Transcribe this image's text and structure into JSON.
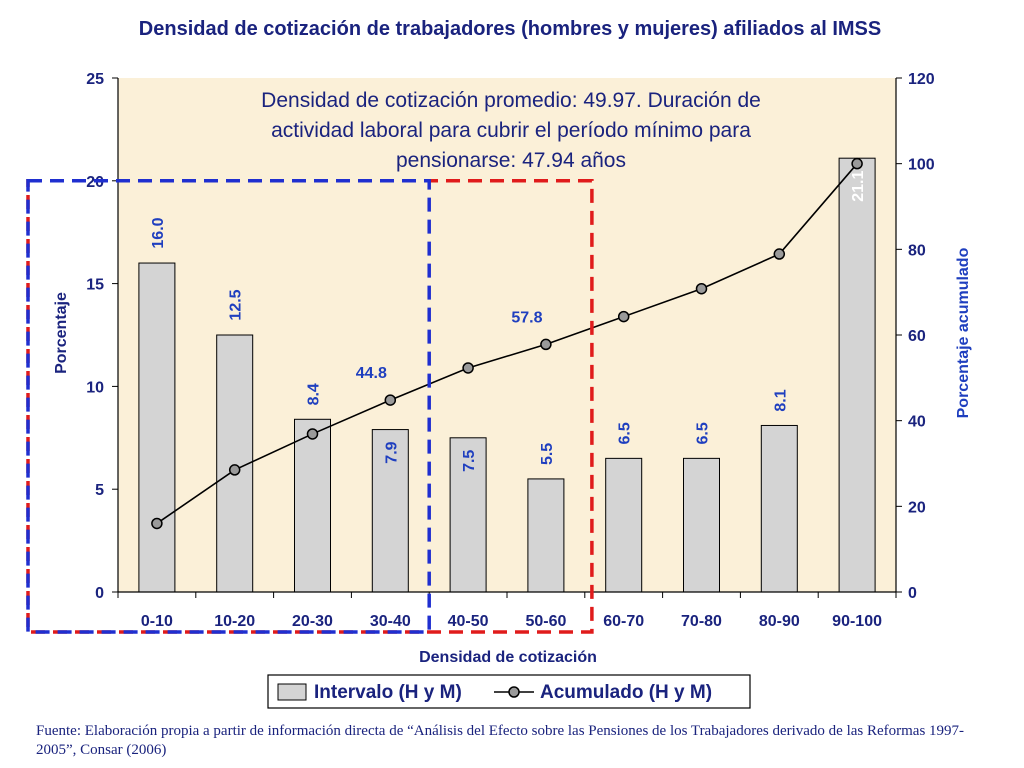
{
  "chart_data": {
    "type": "bar",
    "title": "Densidad de cotización de trabajadores (hombres y mujeres) afiliados al IMSS",
    "annotation": "Densidad de cotización promedio: 49.97. Duración de actividad laboral para cubrir el período mínimo para pensionarse: 47.94 años",
    "xlabel": "Densidad de cotización",
    "ylabel": "Porcentaje",
    "y2label": "Porcentaje acumulado",
    "categories": [
      "0-10",
      "10-20",
      "20-30",
      "30-40",
      "40-50",
      "50-60",
      "60-70",
      "70-80",
      "80-90",
      "90-100"
    ],
    "ylim": [
      0,
      25
    ],
    "y_ticks": [
      0,
      5,
      10,
      15,
      20,
      25
    ],
    "y2lim": [
      0,
      120
    ],
    "y2_ticks": [
      0,
      20,
      40,
      60,
      80,
      100,
      120
    ],
    "series": [
      {
        "name": "Intervalo (H y M)",
        "type": "bar",
        "axis": "left",
        "values": [
          16.0,
          12.5,
          8.4,
          7.9,
          7.5,
          5.5,
          6.5,
          6.5,
          8.1,
          21.1
        ],
        "labels": [
          "16.0",
          "12.5",
          "8.4",
          "7.9",
          "7.5",
          "5.5",
          "6.5",
          "6.5",
          "8.1",
          "21.1"
        ],
        "color": "#d4d4d4"
      },
      {
        "name": "Acumulado (H y M)",
        "type": "line",
        "axis": "right",
        "values": [
          16.0,
          28.5,
          36.9,
          44.8,
          52.3,
          57.8,
          64.3,
          70.8,
          78.9,
          100.0
        ],
        "labels": [
          "",
          "",
          "",
          "44.8",
          "",
          "57.8",
          "",
          "",
          "",
          ""
        ],
        "color": "#000000"
      }
    ],
    "grid": false,
    "legend": "bottom",
    "colors": {
      "plot_background": "#fbf0d8",
      "axis_text_left": "#1a237e",
      "axis_text_right": "#1a237e",
      "y2_label": "#1f3fbf",
      "label_blue": "#1f3fbf",
      "label_white": "#ffffff",
      "highlight_blue": "#1f2fd0",
      "highlight_red": "#e01b1b"
    }
  },
  "source_note": "Fuente: Elaboración propia a partir de información directa de “Análisis del Efecto sobre las Pensiones de los Trabajadores derivado de las Reformas 1997-2005”, Consar (2006)"
}
